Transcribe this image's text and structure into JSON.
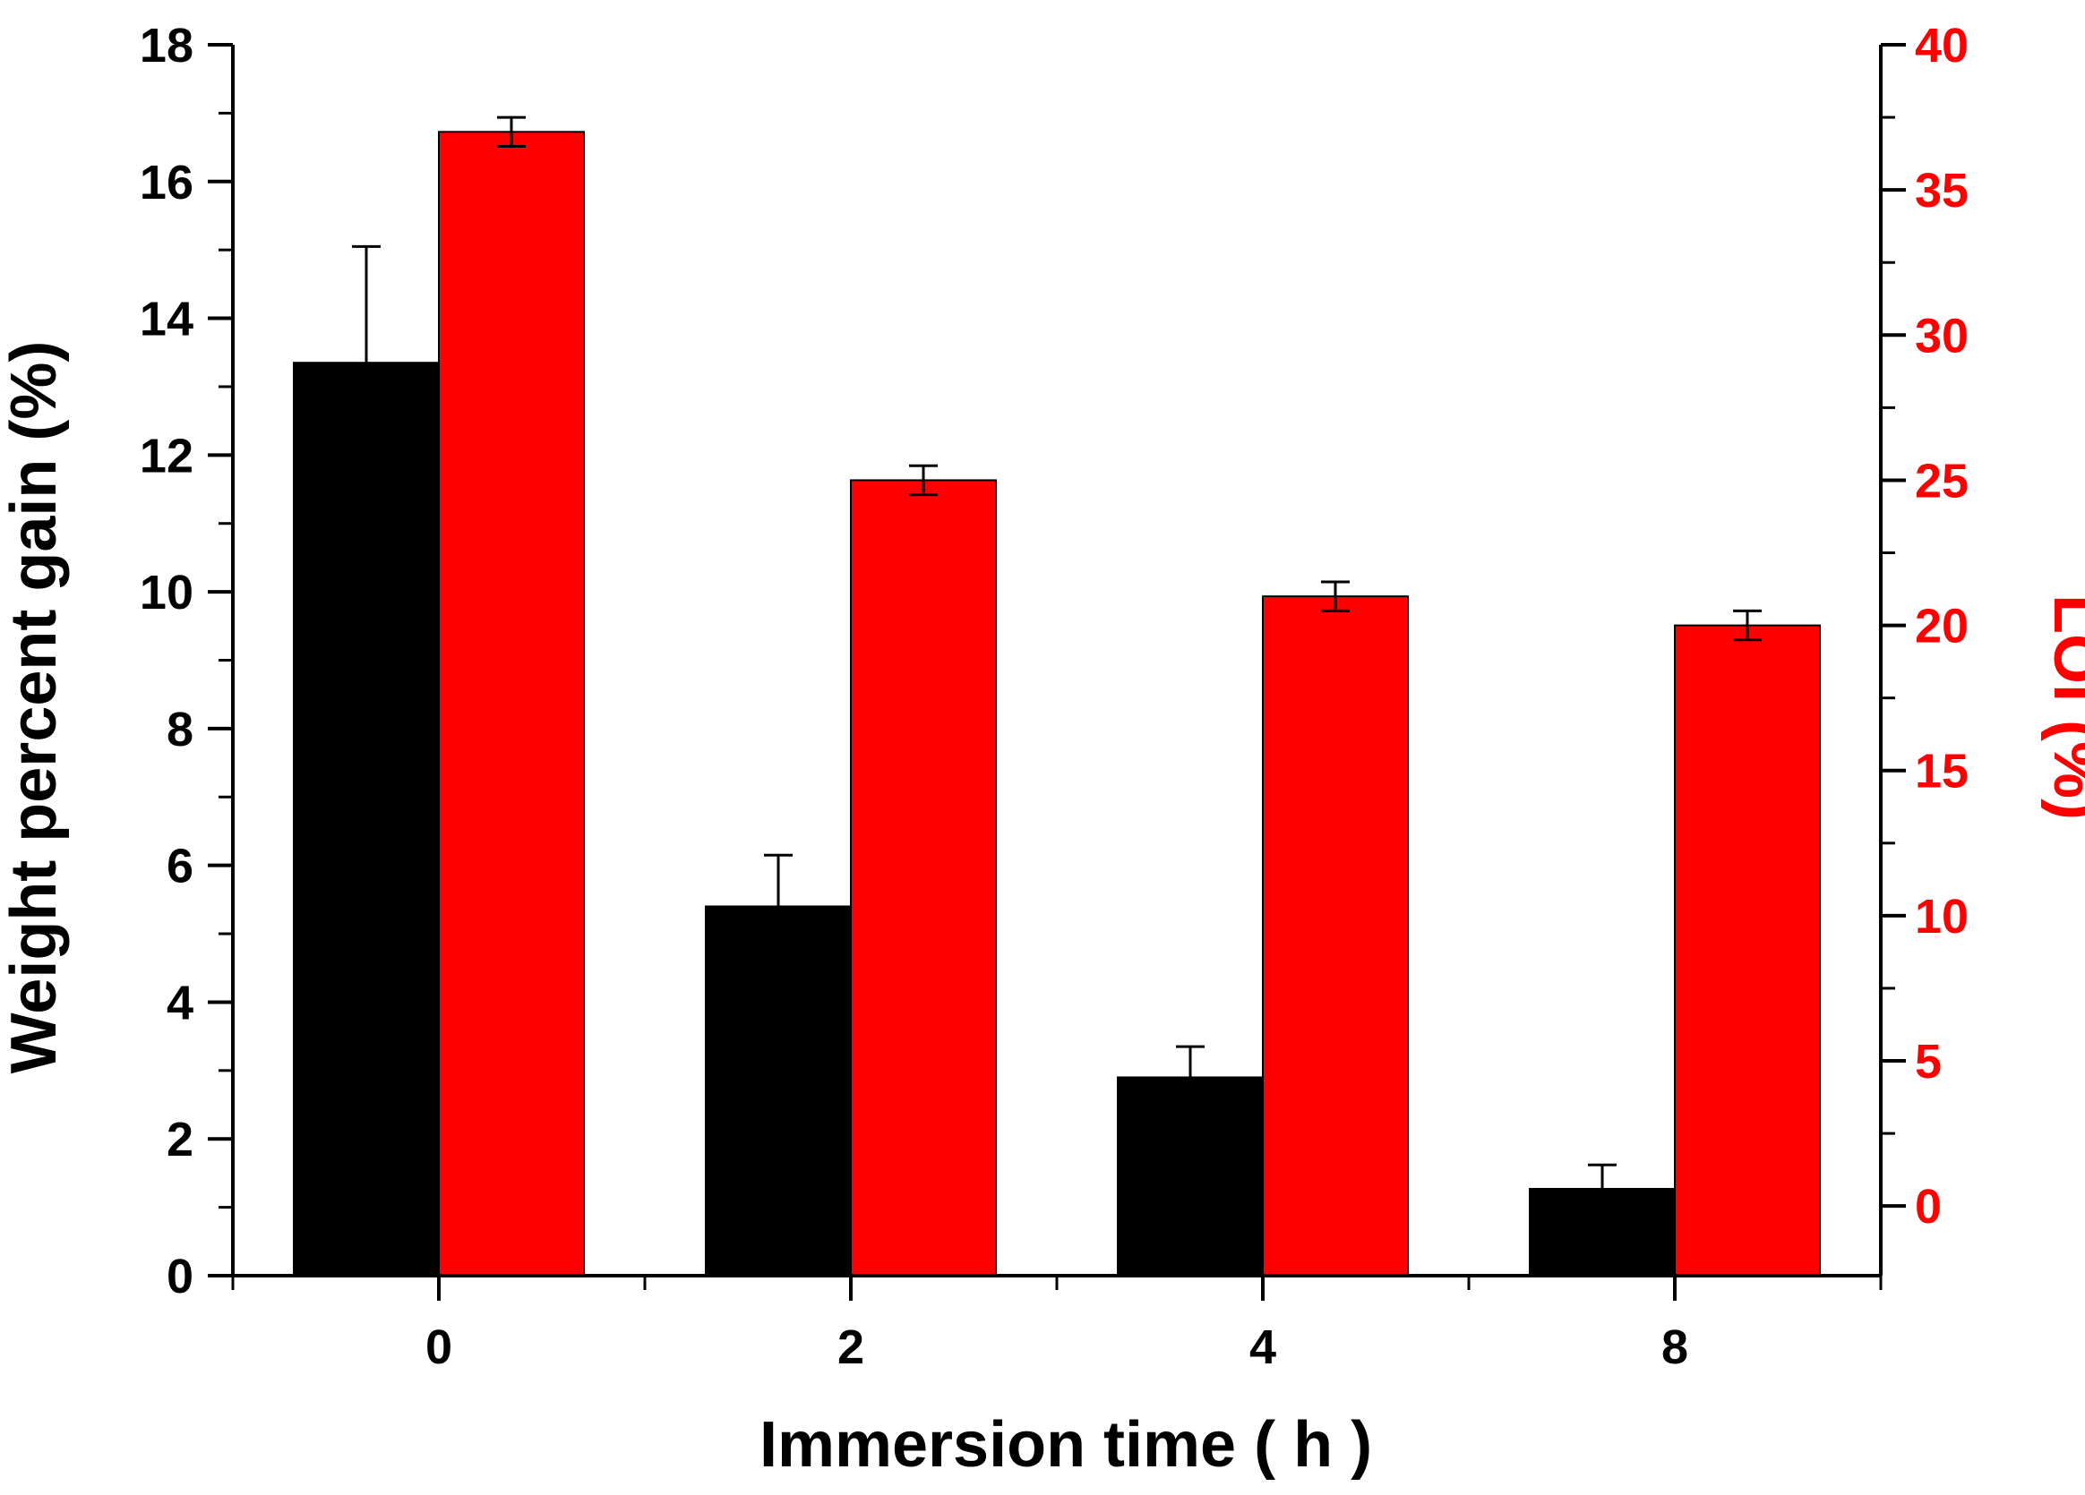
{
  "chart_data": {
    "type": "bar",
    "categories": [
      "0",
      "2",
      "4",
      "8"
    ],
    "xlabel": "Immersion time ( h )",
    "ylabel": "Weight percent gain (%)",
    "ylabel_right": "LOI (%)",
    "ylim": [
      0,
      18
    ],
    "ylim_right": [
      -2.4,
      40
    ],
    "yticks": [
      "0",
      "2",
      "4",
      "6",
      "8",
      "10",
      "12",
      "14",
      "16",
      "18"
    ],
    "yticks_right": [
      "0",
      "5",
      "10",
      "15",
      "20",
      "25",
      "30",
      "35",
      "40"
    ],
    "series": [
      {
        "axis": "left",
        "color": "#000000",
        "values": [
          13.35,
          5.4,
          2.9,
          1.27
        ],
        "errors": [
          1.7,
          0.75,
          0.45,
          0.35
        ]
      },
      {
        "axis": "right",
        "color": "#ff0000",
        "values": [
          37.0,
          25.0,
          21.0,
          20.0
        ],
        "errors": [
          0.5,
          0.5,
          0.5,
          0.5
        ]
      }
    ],
    "colors": {
      "left_axis": "#000000",
      "right_axis": "#ff0000"
    },
    "grid": false,
    "legend": "none"
  }
}
